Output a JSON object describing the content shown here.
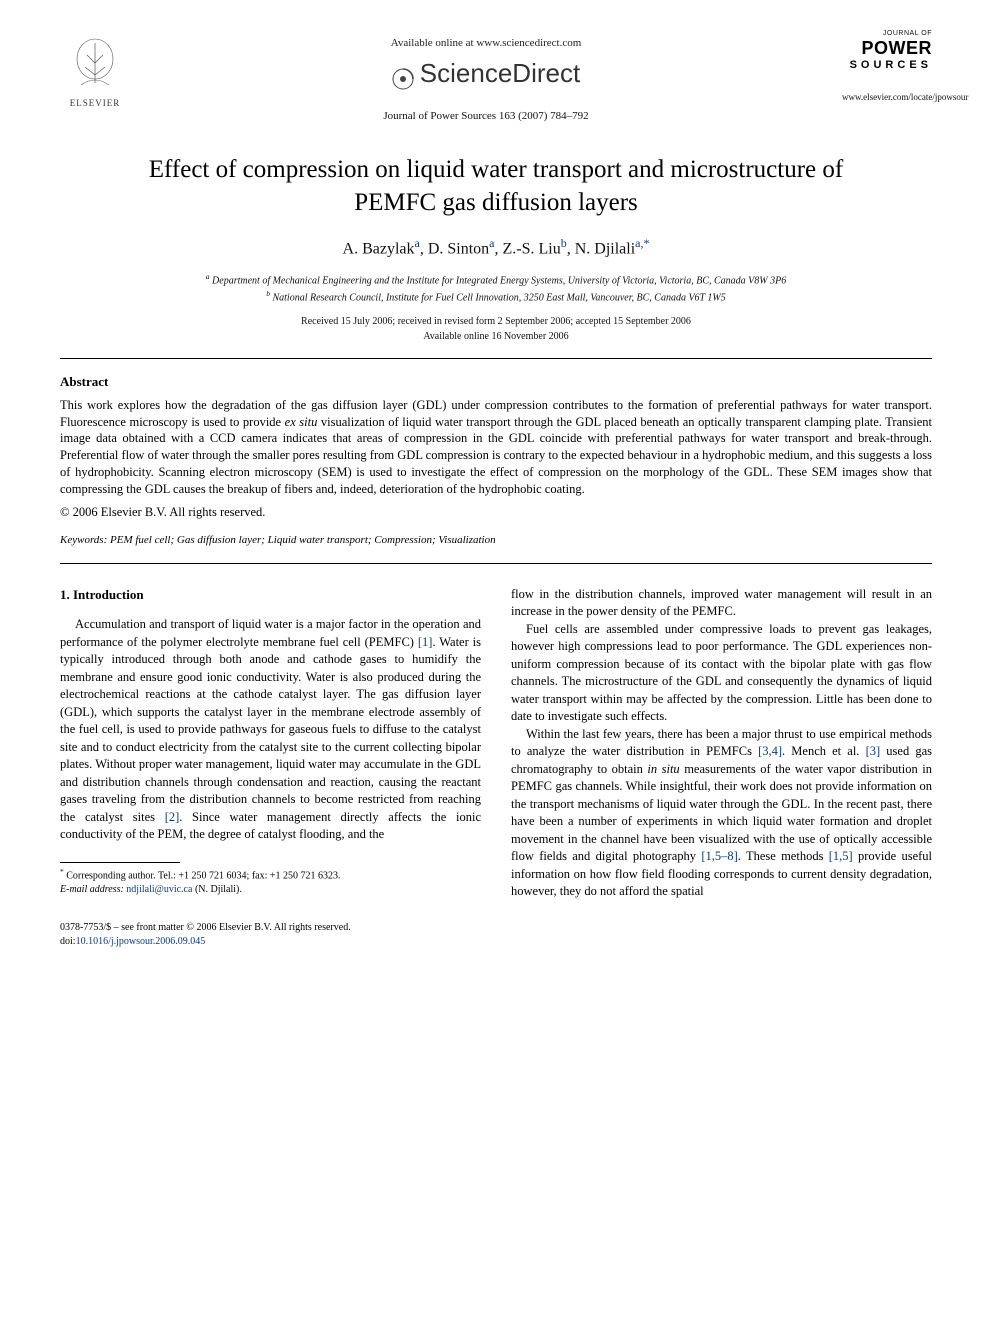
{
  "colors": {
    "text": "#000000",
    "link": "#0a3a82",
    "background": "#ffffff",
    "rule": "#000000"
  },
  "typography": {
    "body_family": "Georgia, Times New Roman, serif",
    "body_size_pt": 10,
    "title_size_pt": 19,
    "authors_size_pt": 12,
    "small_size_pt": 8
  },
  "header": {
    "elsevier_label": "ELSEVIER",
    "available_online": "Available online at www.sciencedirect.com",
    "sciencedirect": "ScienceDirect",
    "journal_ref": "Journal of Power Sources 163 (2007) 784–792",
    "journal_logo": {
      "line1": "JOURNAL OF",
      "power": "POWER",
      "sources": "SOURCES",
      "url": "www.elsevier.com/locate/jpowsour"
    }
  },
  "title": "Effect of compression on liquid water transport and microstructure of PEMFC gas diffusion layers",
  "authors_html": "A. Bazylak<sup class=\"link\">a</sup>, D. Sinton<sup class=\"link\">a</sup>, Z.-S. Liu<sup class=\"link\">b</sup>, N. Djilali<sup class=\"link\">a,</sup><sup class=\"link\">*</sup>",
  "affiliations": {
    "a": "Department of Mechanical Engineering and the Institute for Integrated Energy Systems, University of Victoria, Victoria, BC, Canada V8W 3P6",
    "b": "National Research Council, Institute for Fuel Cell Innovation, 3250 East Mall, Vancouver, BC, Canada V6T 1W5"
  },
  "dates": {
    "line1": "Received 15 July 2006; received in revised form 2 September 2006; accepted 15 September 2006",
    "line2": "Available online 16 November 2006"
  },
  "abstract": {
    "heading": "Abstract",
    "body_html": "This work explores how the degradation of the gas diffusion layer (GDL) under compression contributes to the formation of preferential pathways for water transport. Fluorescence microscopy is used to provide <span class=\"italic\">ex situ</span> visualization of liquid water transport through the GDL placed beneath an optically transparent clamping plate. Transient image data obtained with a CCD camera indicates that areas of compression in the GDL coincide with preferential pathways for water transport and break-through. Preferential flow of water through the smaller pores resulting from GDL compression is contrary to the expected behaviour in a hydrophobic medium, and this suggests a loss of hydrophobicity. Scanning electron microscopy (SEM) is used to investigate the effect of compression on the morphology of the GDL. These SEM images show that compressing the GDL causes the breakup of fibers and, indeed, deterioration of the hydrophobic coating.",
    "copyright": "© 2006 Elsevier B.V. All rights reserved."
  },
  "keywords": {
    "label": "Keywords:",
    "text": "PEM fuel cell; Gas diffusion layer; Liquid water transport; Compression; Visualization"
  },
  "section1": {
    "heading": "1. Introduction",
    "col1_html": "Accumulation and transport of liquid water is a major factor in the operation and performance of the polymer electrolyte membrane fuel cell (PEMFC) <span class=\"cite\">[1]</span>. Water is typically introduced through both anode and cathode gases to humidify the membrane and ensure good ionic conductivity. Water is also produced during the electrochemical reactions at the cathode catalyst layer. The gas diffusion layer (GDL), which supports the catalyst layer in the membrane electrode assembly of the fuel cell, is used to provide pathways for gaseous fuels to diffuse to the catalyst site and to conduct electricity from the catalyst site to the current collecting bipolar plates. Without proper water management, liquid water may accumulate in the GDL and distribution channels through condensation and reaction, causing the reactant gases traveling from the distribution channels to become restricted from reaching the catalyst sites <span class=\"cite\">[2]</span>. Since water management directly affects the ionic conductivity of the PEM, the degree of catalyst flooding, and the",
    "col2_p1_html": "flow in the distribution channels, improved water management will result in an increase in the power density of the PEMFC.",
    "col2_p2_html": "Fuel cells are assembled under compressive loads to prevent gas leakages, however high compressions lead to poor performance. The GDL experiences non-uniform compression because of its contact with the bipolar plate with gas flow channels. The microstructure of the GDL and consequently the dynamics of liquid water transport within may be affected by the compression. Little has been done to date to investigate such effects.",
    "col2_p3_html": "Within the last few years, there has been a major thrust to use empirical methods to analyze the water distribution in PEMFCs <span class=\"cite\">[3,4]</span>. Mench et al. <span class=\"cite\">[3]</span> used gas chromatography to obtain <span class=\"italic\">in situ</span> measurements of the water vapor distribution in PEMFC gas channels. While insightful, their work does not provide information on the transport mechanisms of liquid water through the GDL. In the recent past, there have been a number of experiments in which liquid water formation and droplet movement in the channel have been visualized with the use of optically accessible flow fields and digital photography <span class=\"cite\">[1,5–8]</span>. These methods <span class=\"cite\">[1,5]</span> provide useful information on how flow field flooding corresponds to current density degradation, however, they do not afford the spatial"
  },
  "footnote": {
    "corresponding_html": "<sup>*</sup> Corresponding author. Tel.: +1 250 721 6034; fax: +1 250 721 6323.",
    "email_label": "E-mail address:",
    "email": "ndjilali@uvic.ca",
    "email_paren": "(N. Djilali)."
  },
  "bottom": {
    "line1": "0378-7753/$ – see front matter © 2006 Elsevier B.V. All rights reserved.",
    "doi_label": "doi:",
    "doi": "10.1016/j.jpowsour.2006.09.045"
  }
}
